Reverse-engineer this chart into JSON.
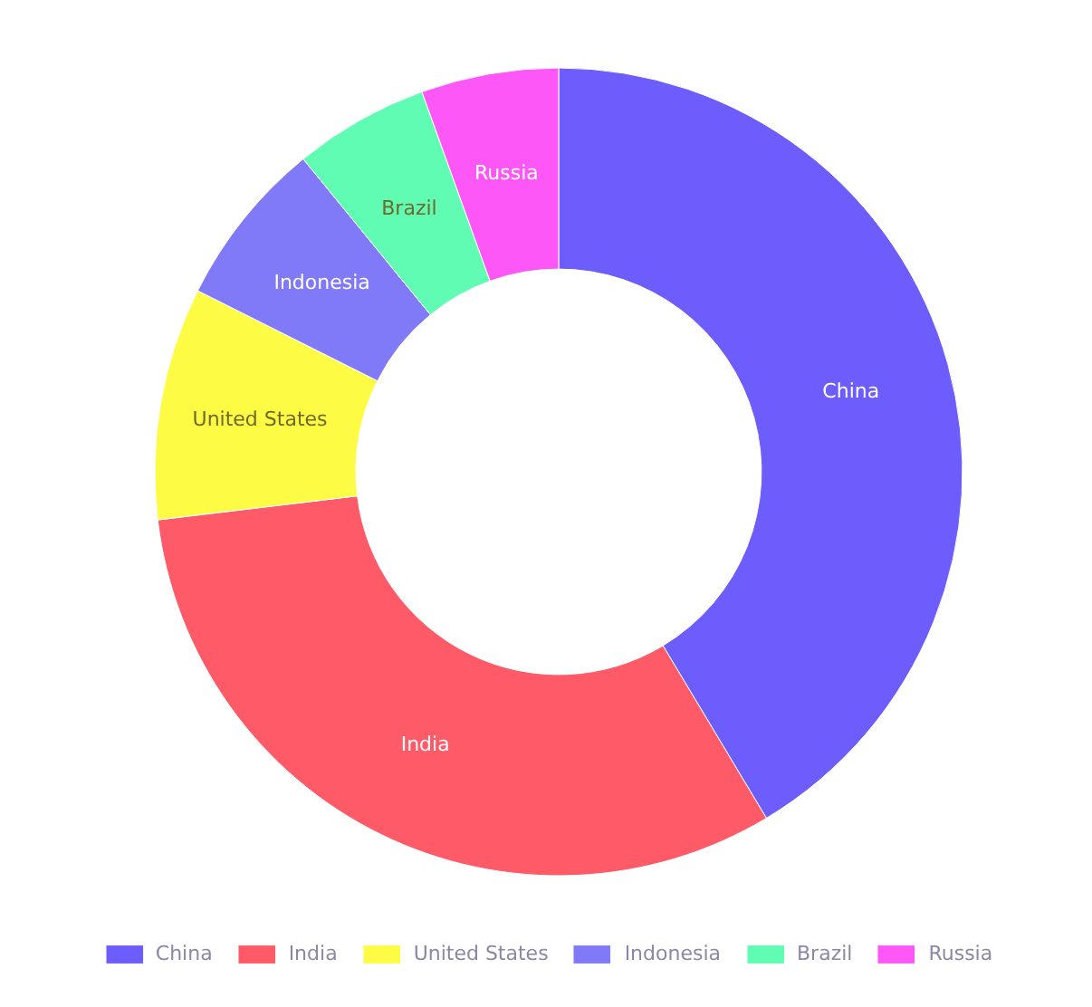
{
  "chart_data": {
    "type": "donut",
    "categories": [
      "China",
      "India",
      "United States",
      "Indonesia",
      "Brazil",
      "Russia"
    ],
    "values": [
      41.4,
      31.7,
      9.3,
      6.7,
      5.4,
      5.5
    ],
    "colors": [
      "#6c5dfc",
      "#fe5a67",
      "#fefb44",
      "#8079f8",
      "#60fcb4",
      "#fd58f7"
    ],
    "legend": "bottom"
  }
}
